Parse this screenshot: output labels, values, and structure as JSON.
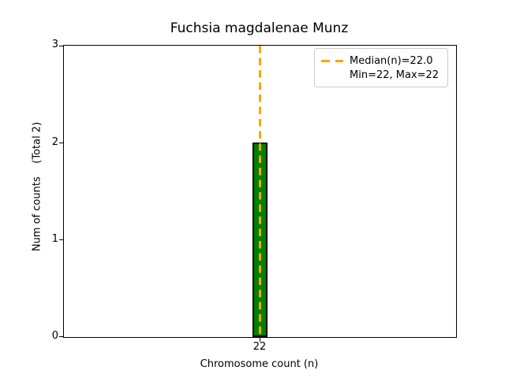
{
  "chart_data": {
    "type": "bar",
    "title": "Fuchsia magdalenae Munz",
    "xlabel": "Chromosome count (n)",
    "ylabel": "Num of counts    (Total 2)",
    "categories": [
      "22"
    ],
    "values": [
      2
    ],
    "total": 2,
    "ylim": [
      0,
      3
    ],
    "yticks": [
      "0",
      "1",
      "2",
      "3"
    ],
    "xticks": [
      "22"
    ],
    "median_n": 22.0,
    "min_n": 22,
    "max_n": 22,
    "grid": false,
    "legend": {
      "position": "upper right",
      "entries": [
        {
          "label": "Median(n)=22.0",
          "symbol": "orange-dashed-line"
        },
        {
          "label": "Min=22, Max=22",
          "symbol": "none"
        }
      ]
    },
    "colors": {
      "bar_fill": "#008000",
      "bar_edge": "#000000",
      "median_line": "#FFA500",
      "background": "#FFFFFF",
      "spines": "#000000"
    }
  }
}
